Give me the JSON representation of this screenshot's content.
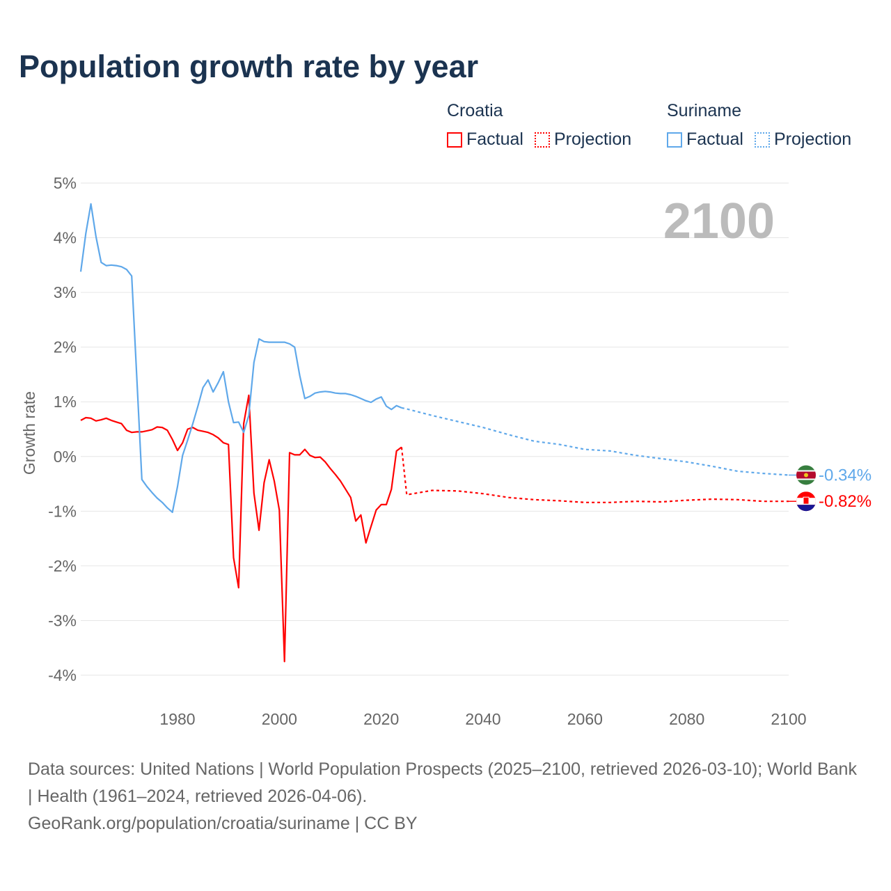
{
  "title": "Population growth rate by year",
  "legend": {
    "groups": [
      {
        "name": "Croatia",
        "factual": "Factual",
        "projection": "Projection",
        "color": "#ff0000"
      },
      {
        "name": "Suriname",
        "factual": "Factual",
        "projection": "Projection",
        "color": "#5fa8ea"
      }
    ]
  },
  "year_badge": "2100",
  "footer": {
    "sources": "Data sources: United Nations | World Population Prospects (2025–2100, retrieved 2026-03-10); World Bank | Health (1961–2024, retrieved 2026-04-06).",
    "credit": "GeoRank.org/population/croatia/suriname | CC BY"
  },
  "chart_data": {
    "type": "line",
    "title": "Population growth rate by year",
    "xlabel": "",
    "ylabel": "Growth rate",
    "xlim": [
      1961,
      2100
    ],
    "ylim": [
      -4,
      5
    ],
    "x_ticks": [
      1980,
      2000,
      2020,
      2040,
      2060,
      2080,
      2100
    ],
    "y_ticks": [
      5,
      4,
      3,
      2,
      1,
      0,
      -1,
      -2,
      -3,
      -4
    ],
    "y_tick_labels": [
      "5%",
      "4%",
      "3%",
      "2%",
      "1%",
      "0%",
      "-1%",
      "-2%",
      "-3%",
      "-4%"
    ],
    "grid": true,
    "series": [
      {
        "name": "Croatia",
        "color": "#ff0000",
        "end_label": "-0.82%",
        "factual": {
          "start_year": 1961,
          "values": [
            0.66,
            0.71,
            0.7,
            0.65,
            0.67,
            0.7,
            0.66,
            0.63,
            0.6,
            0.48,
            0.44,
            0.45,
            0.45,
            0.47,
            0.49,
            0.54,
            0.53,
            0.48,
            0.31,
            0.11,
            0.25,
            0.5,
            0.53,
            0.48,
            0.46,
            0.44,
            0.4,
            0.34,
            0.25,
            0.22,
            -1.85,
            -2.4,
            0.6,
            1.12,
            -0.67,
            -1.35,
            -0.48,
            -0.06,
            -0.45,
            -0.98,
            -3.75,
            0.07,
            0.03,
            0.03,
            0.13,
            0.02,
            -0.02,
            -0.01,
            -0.1,
            -0.22,
            -0.33,
            -0.45,
            -0.6,
            -0.75,
            -1.18,
            -1.07,
            -1.58,
            -1.28,
            -0.98,
            -0.88,
            -0.88,
            -0.6,
            0.1,
            0.17
          ]
        },
        "projection": {
          "x": [
            2024,
            2025,
            2030,
            2035,
            2040,
            2045,
            2050,
            2055,
            2060,
            2065,
            2070,
            2075,
            2080,
            2085,
            2090,
            2095,
            2100
          ],
          "values": [
            0.17,
            -0.7,
            -0.62,
            -0.63,
            -0.68,
            -0.75,
            -0.79,
            -0.81,
            -0.84,
            -0.84,
            -0.82,
            -0.83,
            -0.8,
            -0.78,
            -0.79,
            -0.82,
            -0.82
          ]
        }
      },
      {
        "name": "Suriname",
        "color": "#5fa8ea",
        "end_label": "-0.34%",
        "factual": {
          "start_year": 1961,
          "values": [
            3.38,
            4.08,
            4.62,
            4.02,
            3.55,
            3.49,
            3.5,
            3.49,
            3.47,
            3.42,
            3.3,
            1.45,
            -0.42,
            -0.55,
            -0.66,
            -0.76,
            -0.84,
            -0.94,
            -1.02,
            -0.55,
            0.02,
            0.3,
            0.6,
            0.92,
            1.26,
            1.4,
            1.18,
            1.35,
            1.55,
            1.0,
            0.62,
            0.63,
            0.44,
            0.75,
            1.72,
            2.15,
            2.1,
            2.09,
            2.09,
            2.09,
            2.09,
            2.06,
            2.0,
            1.48,
            1.06,
            1.1,
            1.16,
            1.18,
            1.19,
            1.18,
            1.16,
            1.15,
            1.15,
            1.13,
            1.1,
            1.06,
            1.02,
            0.99,
            1.05,
            1.09,
            0.92,
            0.86,
            0.93,
            0.89
          ]
        },
        "projection": {
          "x": [
            2024,
            2025,
            2030,
            2035,
            2040,
            2045,
            2050,
            2055,
            2060,
            2065,
            2070,
            2075,
            2080,
            2085,
            2090,
            2095,
            2100
          ],
          "values": [
            0.89,
            0.87,
            0.75,
            0.64,
            0.53,
            0.4,
            0.28,
            0.22,
            0.13,
            0.1,
            0.02,
            -0.04,
            -0.1,
            -0.18,
            -0.27,
            -0.31,
            -0.34
          ]
        }
      }
    ]
  }
}
